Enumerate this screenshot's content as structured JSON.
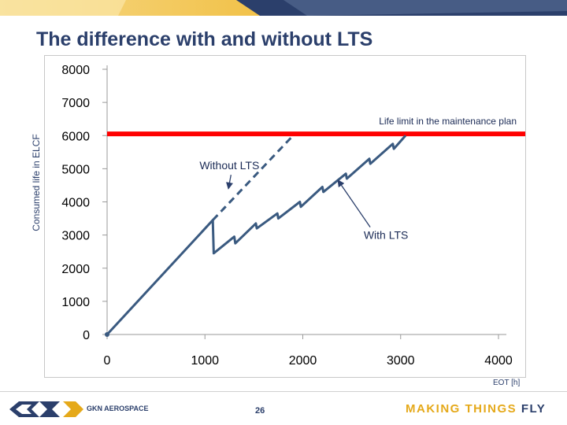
{
  "title": "The difference with and without LTS",
  "footer": {
    "brand": "GKN AEROSPACE",
    "page_number": "26",
    "slogan_main": "MAKING THINGS",
    "slogan_accent": "FLY"
  },
  "chart_data": {
    "type": "line",
    "title": "The difference with and without LTS",
    "ylabel": "Consumed life in ELCF",
    "xlabel": "EOT [h]",
    "xlim": [
      0,
      4000
    ],
    "ylim": [
      0,
      8000
    ],
    "x_ticks": [
      "0",
      "1000",
      "2000",
      "3000",
      "4000"
    ],
    "y_ticks": [
      "0",
      "1000",
      "2000",
      "3000",
      "4000",
      "5000",
      "6000",
      "7000",
      "8000"
    ],
    "limit_line": {
      "value": 6050,
      "label": "Life limit in the maintenance plan",
      "color": "#ff0000"
    },
    "series": [
      {
        "name": "With LTS",
        "style": "solid",
        "color": "#3a5a80",
        "points": [
          [
            0,
            0
          ],
          [
            1080,
            3450
          ],
          [
            1090,
            2450
          ],
          [
            1300,
            2950
          ],
          [
            1310,
            2750
          ],
          [
            1520,
            3350
          ],
          [
            1530,
            3200
          ],
          [
            1740,
            3650
          ],
          [
            1750,
            3500
          ],
          [
            1970,
            4000
          ],
          [
            1980,
            3850
          ],
          [
            2200,
            4450
          ],
          [
            2210,
            4300
          ],
          [
            2440,
            4850
          ],
          [
            2450,
            4700
          ],
          [
            2680,
            5300
          ],
          [
            2690,
            5150
          ],
          [
            2920,
            5750
          ],
          [
            2930,
            5600
          ],
          [
            3050,
            6000
          ]
        ]
      },
      {
        "name": "Without LTS",
        "style": "dashed",
        "color": "#3a5a80",
        "points": [
          [
            1080,
            3450
          ],
          [
            1900,
            6000
          ]
        ]
      }
    ],
    "annotations": [
      {
        "text": "Without LTS",
        "x": 1250,
        "y": 5100
      },
      {
        "text": "With LTS",
        "x": 2850,
        "y": 3000
      }
    ],
    "colors": {
      "title": "#2b3f6b",
      "accent": "#e5a91a",
      "line": "#3a5a80",
      "limit": "#ff0000"
    }
  }
}
